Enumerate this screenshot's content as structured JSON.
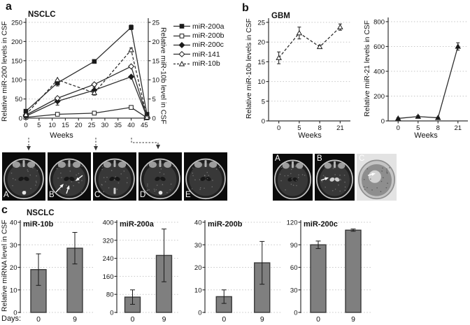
{
  "figure": {
    "panels": {
      "a": {
        "label": "a",
        "title": "NSCLC",
        "mri_labels": [
          "A",
          "B",
          "C",
          "D",
          "E"
        ]
      },
      "b": {
        "label": "b",
        "title": "GBM",
        "mri_labels": [
          "A",
          "B",
          "C"
        ]
      },
      "c": {
        "label": "c",
        "title": "NSCLC",
        "days_label": "Days:"
      }
    }
  },
  "colors": {
    "line": "#2f2f2f",
    "marker_fill": "#1a1a1a",
    "marker_open_fill": "#ffffff",
    "bar_fill": "#7f7f7f",
    "bar_border": "#3a3a3a",
    "grid": "#c6c6c6",
    "axis": "#333333",
    "connector": "#3a3a3a"
  },
  "chart_data": [
    {
      "id": "nsclc-mir200-timecourse",
      "type": "line",
      "title": "NSCLC",
      "xlabel": "Weeks",
      "ylabel": "Relative miR-200 levels in CSF",
      "y2label": "Relative miR-10b level in CSF",
      "xlim": [
        0,
        46.5
      ],
      "xticks": [
        0,
        5,
        10,
        15,
        20,
        25,
        30,
        35,
        40,
        45
      ],
      "ylim": [
        0,
        250
      ],
      "yticks": [
        0,
        50,
        100,
        150,
        200,
        250
      ],
      "y2lim": [
        0,
        25
      ],
      "y2ticks": [
        0,
        5,
        10,
        15,
        20,
        25
      ],
      "x": [
        0,
        12,
        26,
        40,
        46
      ],
      "series": [
        {
          "name": "miR-200a",
          "axis": "left",
          "marker": "square-filled",
          "line": "solid",
          "values": [
            18,
            92,
            148,
            237,
            10
          ],
          "err": [
            0,
            8,
            0,
            6,
            0
          ]
        },
        {
          "name": "miR-200b",
          "axis": "left",
          "marker": "square-open",
          "line": "solid",
          "values": [
            2,
            10,
            13,
            28,
            1
          ],
          "err": [
            0,
            0,
            0,
            0,
            0
          ]
        },
        {
          "name": "miR-200c",
          "axis": "left",
          "marker": "diamond-filled",
          "line": "solid",
          "values": [
            5,
            44,
            73,
            108,
            3
          ],
          "err": [
            0,
            10,
            8,
            0,
            0
          ]
        },
        {
          "name": "miR-141",
          "axis": "left",
          "marker": "diamond-open",
          "line": "solid",
          "values": [
            8,
            52,
            88,
            135,
            3
          ],
          "err": [
            0,
            0,
            0,
            0,
            0
          ]
        },
        {
          "name": "miR-10b",
          "axis": "right",
          "marker": "triangle-open",
          "line": "dashed",
          "values": [
            0.9,
            10,
            6.6,
            17.8,
            0.2
          ],
          "err": [
            0,
            0,
            0.6,
            0.5,
            0
          ]
        }
      ]
    },
    {
      "id": "gbm-mir10b-timecourse",
      "type": "line",
      "title": "GBM",
      "xlabel": "Weeks",
      "ylabel": "Relative miR-10b levels in CSF",
      "categories": [
        "0",
        "5",
        "8",
        "21"
      ],
      "ylim": [
        0,
        25
      ],
      "yticks": [
        0,
        5,
        10,
        15,
        20,
        25
      ],
      "series": [
        {
          "name": "miR-10b",
          "marker": "triangle-open",
          "line": "dashed",
          "values": [
            16,
            22.3,
            18.8,
            23.8
          ],
          "err": [
            1.5,
            1.5,
            0.4,
            0.8
          ]
        }
      ]
    },
    {
      "id": "gbm-mir21-timecourse",
      "type": "line",
      "title": "GBM",
      "xlabel": "Weeks",
      "ylabel": "Relative miR-21 levels in CSF",
      "categories": [
        "0",
        "5",
        "8",
        "21"
      ],
      "ylim": [
        0,
        800
      ],
      "yticks": [
        0,
        200,
        400,
        600,
        800
      ],
      "series": [
        {
          "name": "miR-21",
          "marker": "triangle-filled",
          "line": "solid",
          "values": [
            20,
            35,
            25,
            600
          ],
          "err": [
            5,
            8,
            5,
            30
          ]
        }
      ]
    },
    {
      "id": "nsclc-mir10b-bars",
      "type": "bar",
      "title": "miR-10b",
      "ylabel": "Relative miRNA level in CSF",
      "categories": [
        "0",
        "9"
      ],
      "values": [
        19,
        28.5
      ],
      "err": [
        7,
        7
      ],
      "ylim": [
        0,
        40
      ],
      "yticks": [
        0,
        10,
        20,
        30,
        40
      ]
    },
    {
      "id": "nsclc-mir200a-bars",
      "type": "bar",
      "title": "miR-200a",
      "categories": [
        "0",
        "9"
      ],
      "values": [
        68,
        253
      ],
      "err": [
        32,
        117
      ],
      "ylim": [
        0,
        400
      ],
      "yticks": [
        0,
        80,
        160,
        240,
        320,
        400
      ]
    },
    {
      "id": "nsclc-mir200b-bars",
      "type": "bar",
      "title": "miR-200b",
      "categories": [
        "0",
        "9"
      ],
      "values": [
        7,
        22
      ],
      "err": [
        3,
        9.5
      ],
      "ylim": [
        0,
        40
      ],
      "yticks": [
        0,
        10,
        20,
        30,
        40
      ]
    },
    {
      "id": "nsclc-mir200c-bars",
      "type": "bar",
      "title": "miR-200c",
      "categories": [
        "0",
        "9"
      ],
      "values": [
        90,
        109.5
      ],
      "err": [
        5,
        1.5
      ],
      "ylim": [
        0,
        120
      ],
      "yticks": [
        0,
        30,
        60,
        90,
        120
      ]
    }
  ]
}
